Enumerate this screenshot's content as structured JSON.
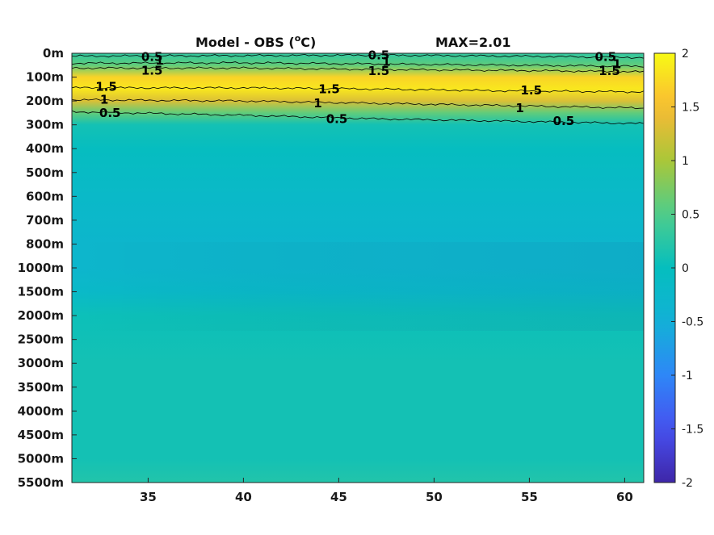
{
  "chart_data": {
    "type": "heatmap",
    "title": "Model - OBS (°C)",
    "title_parts": {
      "prefix": "Model - OBS (",
      "superscript": "o",
      "suffix": "C)"
    },
    "annotation": "MAX=2.01",
    "xlabel": "",
    "ylabel": "",
    "xlim": [
      31,
      61
    ],
    "x_ticks": [
      35,
      40,
      45,
      50,
      55,
      60
    ],
    "x_tick_labels": [
      "35",
      "40",
      "45",
      "50",
      "55",
      "60"
    ],
    "y_tick_labels": [
      "0m",
      "100m",
      "200m",
      "300m",
      "400m",
      "500m",
      "600m",
      "700m",
      "800m",
      "1000m",
      "1500m",
      "2000m",
      "2500m",
      "3000m",
      "3500m",
      "4000m",
      "4500m",
      "5000m",
      "5500m"
    ],
    "colorbar": {
      "range": [
        -2,
        2
      ],
      "ticks": [
        2,
        1.5,
        1,
        0.5,
        0,
        -0.5,
        -1,
        -1.5,
        -2
      ],
      "tick_labels": [
        "2",
        "1.5",
        "1",
        "0.5",
        "0",
        "-0.5",
        "-1",
        "-1.5",
        "-2"
      ],
      "colormap": "parula"
    },
    "depth_profile": [
      {
        "depth": "0m",
        "value": 0.3
      },
      {
        "depth": "50m",
        "value": 0.6
      },
      {
        "depth": "100m",
        "value": 1.7
      },
      {
        "depth": "150m",
        "value": 1.85
      },
      {
        "depth": "200m",
        "value": 1.3
      },
      {
        "depth": "250m",
        "value": 0.6
      },
      {
        "depth": "300m",
        "value": 0.1
      },
      {
        "depth": "400m",
        "value": -0.05
      },
      {
        "depth": "600m",
        "value": -0.2
      },
      {
        "depth": "800m",
        "value": -0.3
      },
      {
        "depth": "1000m",
        "value": -0.3
      },
      {
        "depth": "1500m",
        "value": -0.2
      },
      {
        "depth": "2000m",
        "value": 0.05
      },
      {
        "depth": "3000m",
        "value": 0.1
      },
      {
        "depth": "4000m",
        "value": 0.1
      },
      {
        "depth": "5000m",
        "value": 0.1
      },
      {
        "depth": "5500m",
        "value": 0.2
      }
    ],
    "contour_labels": [
      {
        "text": "0.5",
        "x": 35.2,
        "depth_index": 0.15
      },
      {
        "text": "1",
        "x": 35.6,
        "depth_index": 0.3
      },
      {
        "text": "1.5",
        "x": 35.2,
        "depth_index": 0.72
      },
      {
        "text": "1.5",
        "x": 32.8,
        "depth_index": 1.4
      },
      {
        "text": "1",
        "x": 32.7,
        "depth_index": 1.95
      },
      {
        "text": "0.5",
        "x": 33.0,
        "depth_index": 2.5
      },
      {
        "text": "0.5",
        "x": 47.1,
        "depth_index": 0.08
      },
      {
        "text": "1",
        "x": 47.5,
        "depth_index": 0.35
      },
      {
        "text": "1.5",
        "x": 47.1,
        "depth_index": 0.75
      },
      {
        "text": "1.5",
        "x": 44.5,
        "depth_index": 1.5
      },
      {
        "text": "1",
        "x": 43.9,
        "depth_index": 2.1
      },
      {
        "text": "0.5",
        "x": 44.9,
        "depth_index": 2.75
      },
      {
        "text": "0.5",
        "x": 59.0,
        "depth_index": 0.15
      },
      {
        "text": "1",
        "x": 59.6,
        "depth_index": 0.45
      },
      {
        "text": "1.5",
        "x": 59.2,
        "depth_index": 0.75
      },
      {
        "text": "1.5",
        "x": 55.1,
        "depth_index": 1.55
      },
      {
        "text": "1",
        "x": 54.5,
        "depth_index": 2.3
      },
      {
        "text": "0.5",
        "x": 56.8,
        "depth_index": 2.85
      }
    ],
    "grid": false
  }
}
